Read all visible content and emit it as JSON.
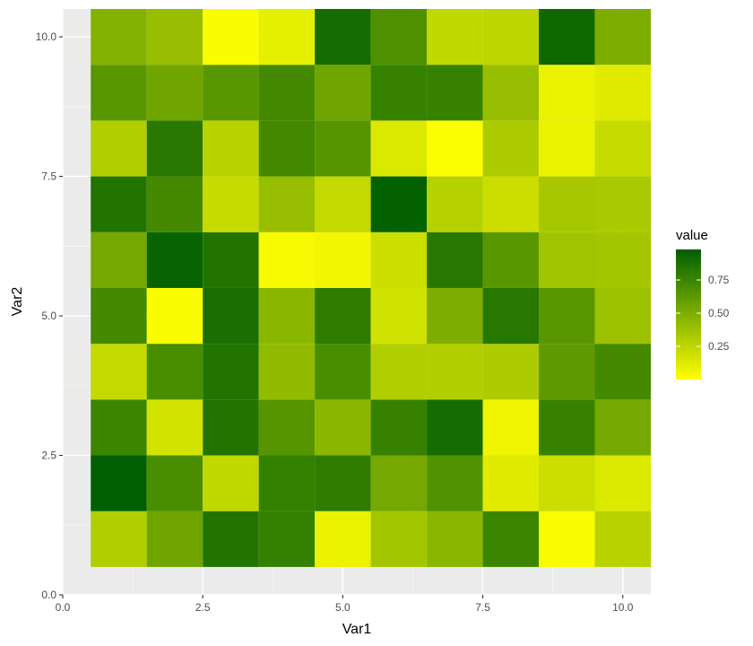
{
  "chart_data": {
    "type": "heatmap",
    "xlabel": "Var1",
    "ylabel": "Var2",
    "xlim": [
      0,
      10.5
    ],
    "ylim": [
      0,
      10.5
    ],
    "x_ticks": [
      0,
      2.5,
      5,
      7.5,
      10
    ],
    "y_ticks": [
      0,
      2.5,
      5,
      7.5,
      10
    ],
    "x_tick_labels": [
      "0.0",
      "2.5",
      "5.0",
      "7.5",
      "10.0"
    ],
    "y_tick_labels": [
      "0.0",
      "2.5",
      "5.0",
      "7.5",
      "10.0"
    ],
    "x": [
      1,
      2,
      3,
      4,
      5,
      6,
      7,
      8,
      9,
      10
    ],
    "y": [
      1,
      2,
      3,
      4,
      5,
      6,
      7,
      8,
      9,
      10
    ],
    "values": [
      [
        0.3,
        0.55,
        0.85,
        0.78,
        0.08,
        0.35,
        0.45,
        0.75,
        0.02,
        0.27
      ],
      [
        0.98,
        0.7,
        0.24,
        0.78,
        0.8,
        0.53,
        0.67,
        0.12,
        0.2,
        0.14
      ],
      [
        0.75,
        0.17,
        0.85,
        0.65,
        0.45,
        0.77,
        0.9,
        0.06,
        0.77,
        0.53
      ],
      [
        0.23,
        0.7,
        0.85,
        0.42,
        0.7,
        0.3,
        0.3,
        0.32,
        0.62,
        0.72
      ],
      [
        0.72,
        0.02,
        0.88,
        0.45,
        0.8,
        0.18,
        0.5,
        0.83,
        0.64,
        0.38
      ],
      [
        0.53,
        0.95,
        0.85,
        0.03,
        0.05,
        0.2,
        0.83,
        0.64,
        0.36,
        0.35
      ],
      [
        0.85,
        0.72,
        0.22,
        0.4,
        0.23,
        0.97,
        0.28,
        0.2,
        0.34,
        0.33
      ],
      [
        0.3,
        0.83,
        0.27,
        0.72,
        0.65,
        0.14,
        0.01,
        0.32,
        0.08,
        0.22
      ],
      [
        0.64,
        0.55,
        0.64,
        0.72,
        0.55,
        0.77,
        0.77,
        0.4,
        0.08,
        0.12
      ],
      [
        0.47,
        0.4,
        0.02,
        0.1,
        0.9,
        0.68,
        0.24,
        0.25,
        0.92,
        0.5
      ]
    ],
    "color_scale": {
      "low": "#ffff00",
      "high": "#005f00",
      "range": [
        0.0,
        0.98
      ]
    },
    "legend": {
      "title": "value",
      "position": "right",
      "breaks": [
        0.25,
        0.5,
        0.75
      ],
      "labels": [
        "0.25",
        "0.50",
        "0.75"
      ]
    },
    "grid": true,
    "panel_background": "#ebebeb"
  }
}
